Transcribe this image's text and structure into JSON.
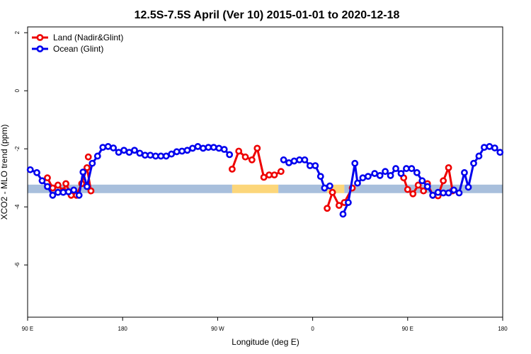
{
  "chart_data": {
    "type": "line",
    "title": "12.5S-7.5S April (Ver 10)   2015-01-01 to 2020-12-18",
    "xlabel": "Longitude (deg E)",
    "ylabel": "XCO2 - MLO trend (ppm)",
    "xlim": [
      90,
      450
    ],
    "ylim": [
      -7.8,
      2.2
    ],
    "x_ticks": [
      {
        "value": 90,
        "label": "90 E"
      },
      {
        "value": 162,
        "label": "180"
      },
      {
        "value": 234,
        "label": "90 W"
      },
      {
        "value": 306,
        "label": "0"
      },
      {
        "value": 378,
        "label": "90 E"
      },
      {
        "value": 450,
        "label": "180"
      }
    ],
    "y_ticks": [
      {
        "value": 2,
        "label": "2"
      },
      {
        "value": 0,
        "label": "0"
      },
      {
        "value": -2,
        "label": "-2"
      },
      {
        "value": -4,
        "label": "-4"
      },
      {
        "value": -6,
        "label": "-6"
      }
    ],
    "legend_position": "top-left",
    "background_band": {
      "y": -3.38,
      "segments": [
        {
          "x0": 90,
          "x1": 245,
          "color": "#a8bfdc"
        },
        {
          "x0": 245,
          "x1": 280,
          "color": "#fcd67a"
        },
        {
          "x0": 280,
          "x1": 303,
          "color": "#a8bfdc"
        },
        {
          "x0": 303,
          "x1": 317,
          "color": "#a8bfdc"
        },
        {
          "x0": 317,
          "x1": 330,
          "color": "#fcd67a"
        },
        {
          "x0": 330,
          "x1": 450,
          "color": "#a8bfdc"
        }
      ]
    },
    "series": [
      {
        "name": "Land (Nadir&Glint)",
        "color": "#ee0000",
        "segments": [
          [
            [
              105,
              -3.0
            ],
            [
              109,
              -3.35
            ],
            [
              113,
              -3.25
            ],
            [
              117,
              -3.45
            ],
            [
              119,
              -3.2
            ],
            [
              123,
              -3.6
            ],
            [
              127,
              -3.6
            ],
            [
              131,
              -3.2
            ],
            [
              135,
              -2.65
            ],
            [
              138,
              -3.45
            ]
          ],
          [
            [
              136,
              -2.28
            ]
          ],
          [
            [
              245,
              -2.7
            ],
            [
              250,
              -2.08
            ],
            [
              255,
              -2.28
            ],
            [
              260,
              -2.38
            ],
            [
              264,
              -1.98
            ],
            [
              269,
              -2.98
            ],
            [
              273,
              -2.9
            ],
            [
              277,
              -2.9
            ],
            [
              282,
              -2.78
            ]
          ],
          [
            [
              317,
              -4.05
            ],
            [
              321,
              -3.5
            ],
            [
              326,
              -3.95
            ],
            [
              330,
              -3.85
            ],
            [
              336,
              -3.35
            ]
          ],
          [
            [
              375,
              -3.0
            ],
            [
              378,
              -3.4
            ],
            [
              382,
              -3.55
            ],
            [
              386,
              -3.25
            ],
            [
              390,
              -3.45
            ],
            [
              393,
              -3.2
            ],
            [
              397,
              -3.6
            ],
            [
              401,
              -3.62
            ],
            [
              405,
              -3.1
            ],
            [
              409,
              -2.65
            ],
            [
              412,
              -3.45
            ]
          ]
        ]
      },
      {
        "name": "Ocean (Glint)",
        "color": "#0000ee",
        "segments": [
          [
            [
              92,
              -2.72
            ],
            [
              97,
              -2.82
            ],
            [
              101,
              -3.1
            ],
            [
              105,
              -3.3
            ],
            [
              109,
              -3.6
            ],
            [
              113,
              -3.5
            ],
            [
              117,
              -3.5
            ],
            [
              121,
              -3.48
            ],
            [
              125,
              -3.42
            ],
            [
              129,
              -3.6
            ],
            [
              132,
              -2.8
            ],
            [
              135,
              -3.3
            ],
            [
              139,
              -2.5
            ],
            [
              143,
              -2.25
            ],
            [
              147,
              -1.95
            ],
            [
              151,
              -1.92
            ],
            [
              155,
              -1.97
            ],
            [
              159,
              -2.12
            ],
            [
              163,
              -2.05
            ],
            [
              167,
              -2.12
            ],
            [
              171,
              -2.05
            ],
            [
              175,
              -2.15
            ],
            [
              179,
              -2.22
            ],
            [
              183,
              -2.22
            ],
            [
              187,
              -2.25
            ],
            [
              191,
              -2.25
            ],
            [
              195,
              -2.25
            ],
            [
              199,
              -2.18
            ],
            [
              203,
              -2.1
            ],
            [
              207,
              -2.08
            ],
            [
              211,
              -2.05
            ],
            [
              215,
              -1.98
            ],
            [
              219,
              -1.92
            ],
            [
              223,
              -1.98
            ],
            [
              227,
              -1.95
            ],
            [
              231,
              -1.95
            ],
            [
              235,
              -1.98
            ],
            [
              239,
              -2.02
            ],
            [
              243,
              -2.2
            ]
          ],
          [
            [
              284,
              -2.38
            ],
            [
              288,
              -2.48
            ],
            [
              292,
              -2.42
            ],
            [
              296,
              -2.38
            ],
            [
              300,
              -2.38
            ],
            [
              304,
              -2.58
            ],
            [
              308,
              -2.58
            ],
            [
              312,
              -2.95
            ],
            [
              315,
              -3.35
            ],
            [
              319,
              -3.28
            ]
          ],
          [
            [
              329,
              -4.25
            ],
            [
              333,
              -3.85
            ],
            [
              338,
              -2.5
            ],
            [
              340,
              -3.18
            ],
            [
              344,
              -3.0
            ],
            [
              348,
              -2.95
            ],
            [
              353,
              -2.85
            ],
            [
              357,
              -2.92
            ],
            [
              361,
              -2.78
            ],
            [
              365,
              -2.92
            ],
            [
              369,
              -2.68
            ],
            [
              373,
              -2.85
            ],
            [
              377,
              -2.68
            ],
            [
              381,
              -2.68
            ],
            [
              385,
              -2.82
            ],
            [
              389,
              -3.1
            ],
            [
              393,
              -3.3
            ],
            [
              397,
              -3.6
            ],
            [
              401,
              -3.5
            ],
            [
              405,
              -3.52
            ],
            [
              409,
              -3.52
            ],
            [
              413,
              -3.42
            ],
            [
              417,
              -3.52
            ],
            [
              421,
              -2.82
            ],
            [
              424,
              -3.32
            ],
            [
              428,
              -2.5
            ],
            [
              432,
              -2.25
            ],
            [
              436,
              -1.95
            ],
            [
              440,
              -1.92
            ],
            [
              444,
              -1.97
            ],
            [
              448,
              -2.12
            ]
          ]
        ]
      }
    ]
  }
}
